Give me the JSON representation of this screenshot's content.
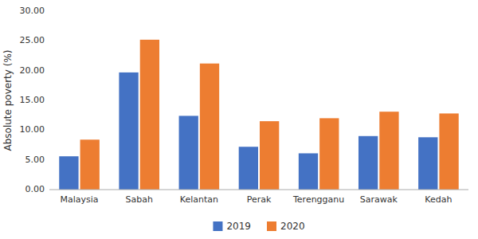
{
  "chart_data": {
    "type": "bar",
    "ylabel": "Absolute poverty (%)",
    "categories": [
      "Malaysia",
      "Sabah",
      "Kelantan",
      "Perak",
      "Terengganu",
      "Sarawak",
      "Kedah"
    ],
    "series": [
      {
        "name": "2019",
        "color": "#4472C4",
        "values": [
          5.6,
          19.7,
          12.4,
          7.2,
          6.1,
          9.0,
          8.8
        ]
      },
      {
        "name": "2020",
        "color": "#ED7D31",
        "values": [
          8.4,
          25.2,
          21.2,
          11.5,
          12.0,
          13.1,
          12.8
        ]
      }
    ],
    "ylim": [
      0,
      30
    ],
    "yticks": [
      {
        "value": 0,
        "label": "0.00"
      },
      {
        "value": 5,
        "label": "5.00"
      },
      {
        "value": 10,
        "label": "10.00"
      },
      {
        "value": 15,
        "label": "15.00"
      },
      {
        "value": 20,
        "label": "20.00"
      },
      {
        "value": 25,
        "label": "25.00"
      },
      {
        "value": 30,
        "label": "30.00"
      }
    ],
    "grid": false,
    "legend": "bottom"
  }
}
